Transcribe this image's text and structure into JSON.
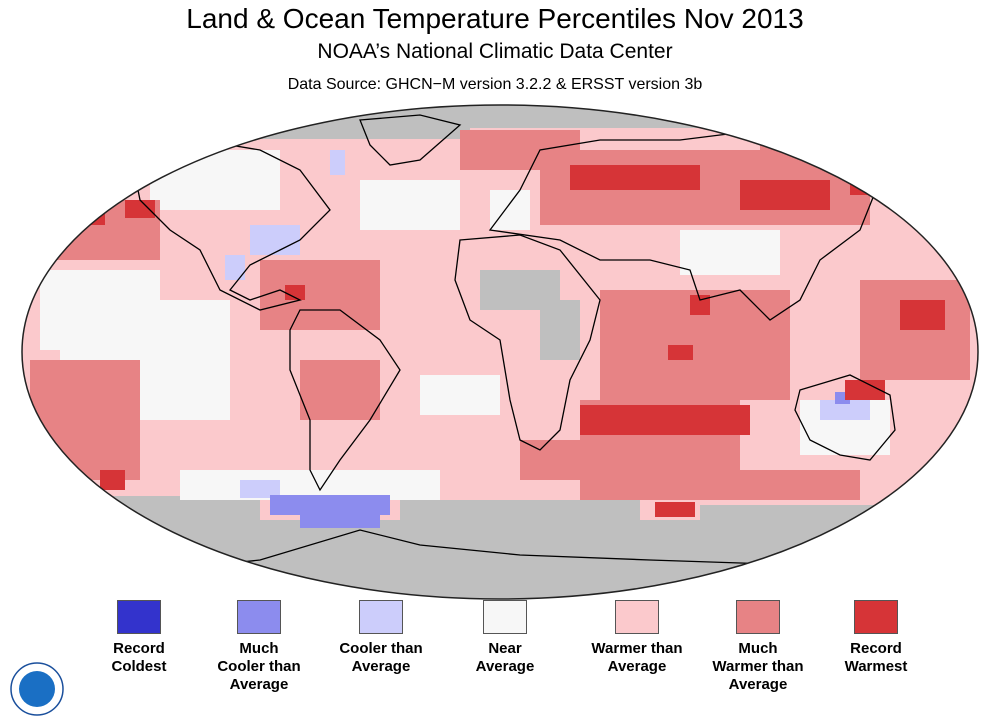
{
  "header": {
    "title": "Land & Ocean Temperature Percentiles Nov 2013",
    "subtitle": "NOAA’s National Climatic Data Center",
    "source": "Data Source: GHCN−M version 3.2.2 & ERSST version 3b"
  },
  "legend": [
    {
      "label": "Record\nColdest",
      "color": "#3333cc"
    },
    {
      "label": "Much\nCooler than\nAverage",
      "color": "#8c8cee"
    },
    {
      "label": "Cooler than\nAverage",
      "color": "#cccdfb"
    },
    {
      "label": "Near\nAverage",
      "color": "#f7f7f7"
    },
    {
      "label": "Warmer than\nAverage",
      "color": "#fbc9cc"
    },
    {
      "label": "Much\nWarmer than\nAverage",
      "color": "#e78385"
    },
    {
      "label": "Record\nWarmest",
      "color": "#d63437"
    }
  ],
  "map": {
    "projection": "robinson",
    "no_data_color": "#bfbfbf",
    "coastline_color": "#000000"
  }
}
